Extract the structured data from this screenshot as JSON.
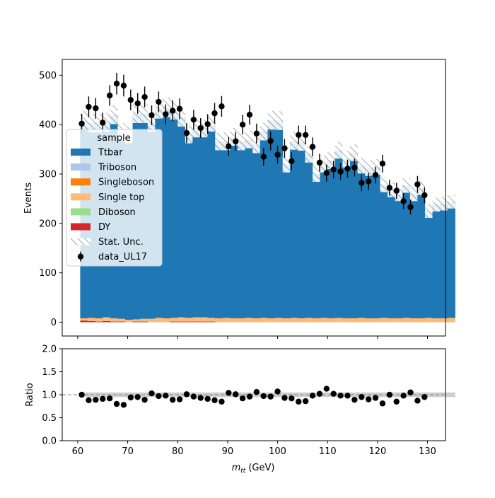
{
  "chart_data": {
    "type": "bar",
    "subtype": "stacked-histogram-with-data-and-ratio-panel",
    "bin_width": 1.5,
    "x_edges": [
      60.5,
      130.0
    ],
    "xlim": [
      56.9,
      133.6
    ],
    "x_ticks": [
      60,
      70,
      80,
      90,
      100,
      110,
      120,
      130
    ],
    "main": {
      "ylabel": "Events",
      "ylim": [
        -28,
        532
      ],
      "y_ticks": [
        0,
        100,
        200,
        300,
        400,
        500
      ],
      "legend": {
        "title": "sample",
        "placement": "center-left",
        "entries": [
          {
            "label": "Ttbar",
            "color": "#1f77b4",
            "kind": "patch"
          },
          {
            "label": "Triboson",
            "color": "#aec7e8",
            "kind": "patch"
          },
          {
            "label": "Singleboson",
            "color": "#ff7f0e",
            "kind": "patch"
          },
          {
            "label": "Single top",
            "color": "#ffbb78",
            "kind": "patch"
          },
          {
            "label": "Diboson",
            "color": "#98df8a",
            "kind": "patch"
          },
          {
            "label": "DY",
            "color": "#d62728",
            "kind": "patch"
          },
          {
            "label": "Stat. Unc.",
            "color": "#808080",
            "kind": "hatch"
          },
          {
            "label": "data_UL17",
            "color": "#000000",
            "kind": "errorbar"
          }
        ]
      },
      "mc_total": [
        408,
        403,
        403,
        404,
        420,
        385,
        380,
        422,
        422,
        404,
        432,
        435,
        430,
        415,
        380,
        392,
        392,
        405,
        366,
        366,
        375,
        366,
        370,
        360,
        386,
        409,
        408,
        320,
        367,
        365,
        340,
        300,
        320,
        327,
        348,
        330,
        343,
        317,
        312,
        314,
        278,
        268,
        260,
        277,
        260,
        272,
        225,
        238,
        240,
        244
      ],
      "single_top": [
        5,
        7,
        7,
        8,
        7,
        6,
        5,
        5,
        6,
        7,
        9,
        8,
        8,
        9,
        8,
        9,
        9,
        8,
        8,
        9,
        8,
        8,
        9,
        8,
        9,
        8,
        9,
        8,
        9,
        8,
        9,
        8,
        9,
        8,
        9,
        8,
        8,
        9,
        8,
        8,
        9,
        8,
        8,
        9,
        8,
        8,
        9,
        8,
        8,
        9
      ],
      "dy": [
        3,
        2,
        1,
        2,
        1,
        1,
        0,
        1,
        1,
        0,
        0,
        0,
        1,
        1,
        1,
        1,
        1,
        1,
        0,
        0,
        0,
        0,
        0,
        0,
        0,
        0,
        0,
        0,
        0,
        0,
        0,
        0,
        0,
        0,
        0,
        0,
        0,
        0,
        0,
        0,
        0,
        0,
        0,
        0,
        0,
        0,
        0,
        0,
        0,
        0
      ],
      "stat_unc": [
        19,
        19,
        19,
        19,
        19,
        18,
        18,
        19,
        19,
        19,
        20,
        20,
        20,
        19,
        18,
        18,
        18,
        19,
        18,
        18,
        18,
        18,
        18,
        18,
        18,
        19,
        19,
        17,
        18,
        18,
        17,
        16,
        17,
        17,
        17,
        17,
        17,
        16,
        16,
        16,
        15,
        15,
        15,
        15,
        15,
        15,
        14,
        14,
        14,
        14
      ],
      "data_x": [
        60.8,
        62.2,
        63.6,
        65.0,
        66.4,
        67.8,
        69.2,
        70.6,
        72.0,
        73.4,
        74.8,
        76.2,
        77.6,
        79.0,
        80.4,
        81.8,
        83.2,
        84.6,
        86.0,
        87.4,
        88.8,
        90.2,
        91.6,
        93.0,
        94.4,
        95.8,
        97.2,
        98.6,
        100.0,
        101.4,
        102.8,
        104.2,
        105.6,
        107.0,
        108.4,
        109.8,
        111.2,
        112.6,
        114.0,
        115.4,
        116.8,
        118.2,
        119.6,
        121.0,
        122.4,
        123.8,
        125.2,
        126.6,
        128.0,
        129.4
      ],
      "data_y": [
        402,
        436,
        433,
        404,
        459,
        483,
        479,
        450,
        443,
        456,
        419,
        446,
        421,
        428,
        432,
        383,
        410,
        393,
        401,
        423,
        437,
        356,
        366,
        400,
        420,
        382,
        335,
        367,
        339,
        352,
        326,
        379,
        379,
        355,
        323,
        302,
        309,
        305,
        311,
        313,
        282,
        285,
        298,
        321,
        272,
        266,
        245,
        233,
        279,
        257
      ],
      "data_err": [
        20,
        21,
        21,
        20,
        21,
        22,
        22,
        21,
        21,
        21,
        20,
        21,
        20,
        21,
        21,
        20,
        20,
        20,
        20,
        21,
        21,
        19,
        19,
        20,
        20,
        20,
        18,
        19,
        18,
        19,
        18,
        19,
        19,
        19,
        18,
        17,
        18,
        17,
        18,
        18,
        17,
        17,
        17,
        18,
        16,
        16,
        16,
        15,
        17,
        16
      ]
    },
    "ratio": {
      "ylabel": "Ratio",
      "ylim": [
        0.0,
        2.0
      ],
      "y_ticks": [
        "0.0",
        "0.5",
        "1.0",
        "1.5",
        "2.0"
      ],
      "reference_line": 1.0,
      "values": [
        1.0,
        0.88,
        0.89,
        0.91,
        0.92,
        0.8,
        0.78,
        0.94,
        0.95,
        0.89,
        1.03,
        0.97,
        0.98,
        0.89,
        0.9,
        1.01,
        0.96,
        0.93,
        0.91,
        0.88,
        0.85,
        1.04,
        1.01,
        0.92,
        0.96,
        1.06,
        0.97,
        0.96,
        1.07,
        0.93,
        0.92,
        0.85,
        0.86,
        0.98,
        1.02,
        1.13,
        1.02,
        0.98,
        0.98,
        0.89,
        0.95,
        0.9,
        0.93,
        0.81,
        1.0,
        0.85,
        0.98,
        1.05,
        0.87,
        0.95
      ],
      "band": 0.05
    },
    "xlabel_main": "m",
    "xlabel_sub": "tt",
    "xlabel_unit": "(GeV)"
  }
}
